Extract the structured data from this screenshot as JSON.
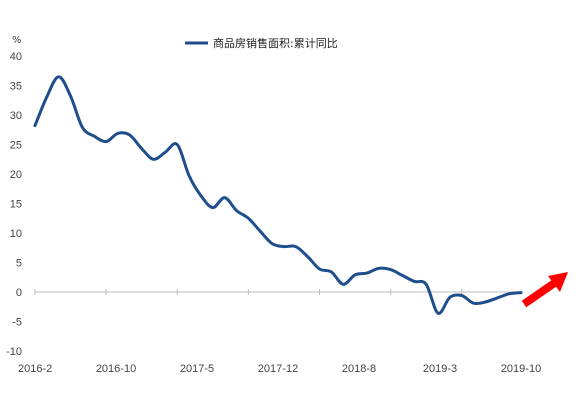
{
  "chart_data": {
    "type": "line",
    "title": "",
    "xlabel": "",
    "ylabel": "%",
    "ylim": [
      -10,
      40
    ],
    "yticks": [
      40,
      35,
      30,
      25,
      20,
      15,
      10,
      5,
      0,
      -5,
      -10
    ],
    "xtick_labels": [
      "2016-2",
      "2016-10",
      "2017-5",
      "2017-12",
      "2018-8",
      "2019-3",
      "2019-10"
    ],
    "grid": false,
    "legend_position": "top-center",
    "series": [
      {
        "name": "商品房销售面积:累计同比",
        "color": "#1f4e8c",
        "x": [
          "2016-2",
          "2016-3",
          "2016-4",
          "2016-5",
          "2016-6",
          "2016-7",
          "2016-8",
          "2016-9",
          "2016-10",
          "2016-11",
          "2016-12",
          "2017-2",
          "2017-3",
          "2017-4",
          "2017-5",
          "2017-6",
          "2017-7",
          "2017-8",
          "2017-9",
          "2017-10",
          "2017-11",
          "2017-12",
          "2018-2",
          "2018-3",
          "2018-4",
          "2018-5",
          "2018-6",
          "2018-7",
          "2018-8",
          "2018-9",
          "2018-10",
          "2018-11",
          "2018-12",
          "2019-2",
          "2019-3",
          "2019-4",
          "2019-5",
          "2019-6",
          "2019-7",
          "2019-8",
          "2019-9",
          "2019-10"
        ],
        "values": [
          28.2,
          33.1,
          36.5,
          33.2,
          27.9,
          26.4,
          25.5,
          26.9,
          26.6,
          24.3,
          22.5,
          23.7,
          25.0,
          19.7,
          16.3,
          14.3,
          16.0,
          13.8,
          12.5,
          10.3,
          8.2,
          7.7,
          7.7,
          6.0,
          3.9,
          3.4,
          1.3,
          2.9,
          3.2,
          4.0,
          3.8,
          2.8,
          1.8,
          1.3,
          -3.6,
          -0.9,
          -0.6,
          -1.9,
          -1.7,
          -1.0,
          -0.3,
          -0.1
        ]
      }
    ],
    "annotations": [
      {
        "type": "arrow",
        "color": "#ff0000",
        "direction": "up-right"
      }
    ]
  }
}
